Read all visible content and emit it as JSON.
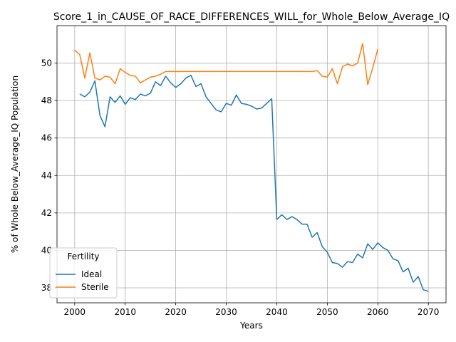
{
  "chart_data": {
    "type": "line",
    "title": "Score_1_in_CAUSE_OF_RACE_DIFFERENCES_WILL_for_Whole_Below_Average_IQ",
    "xlabel": "Years",
    "ylabel": "% of Whole Below_Average_IQ Population",
    "xlim": [
      1996.5,
      2073.5
    ],
    "ylim": [
      37.2,
      52.0
    ],
    "xticks": [
      2000,
      2010,
      2020,
      2030,
      2040,
      2050,
      2060,
      2070
    ],
    "yticks": [
      38,
      40,
      42,
      44,
      46,
      48,
      50
    ],
    "grid": true,
    "legend": {
      "title": "Fertility",
      "placement": "lower-left"
    },
    "series": [
      {
        "name": "Ideal",
        "color": "#1f77b4",
        "x": [
          2001,
          2002,
          2003,
          2004,
          2005,
          2006,
          2007,
          2008,
          2009,
          2010,
          2011,
          2012,
          2013,
          2014,
          2015,
          2016,
          2017,
          2018,
          2019,
          2020,
          2021,
          2022,
          2023,
          2024,
          2025,
          2026,
          2027,
          2028,
          2029,
          2030,
          2031,
          2032,
          2033,
          2034,
          2035,
          2036,
          2037,
          2038,
          2039,
          2040,
          2041,
          2042,
          2043,
          2044,
          2045,
          2046,
          2047,
          2048,
          2049,
          2050,
          2051,
          2052,
          2053,
          2054,
          2055,
          2056,
          2057,
          2058,
          2059,
          2060,
          2061,
          2062,
          2063,
          2064,
          2065,
          2066,
          2067,
          2068,
          2069,
          2070
        ],
        "values": [
          48.35,
          48.2,
          48.45,
          49.05,
          47.2,
          46.6,
          48.2,
          47.9,
          48.25,
          47.8,
          48.15,
          48.05,
          48.35,
          48.25,
          48.4,
          49.0,
          48.8,
          49.3,
          48.95,
          48.7,
          48.9,
          49.2,
          49.35,
          48.75,
          48.9,
          48.2,
          47.85,
          47.5,
          47.4,
          47.85,
          47.75,
          48.3,
          47.85,
          47.8,
          47.7,
          47.55,
          47.6,
          47.85,
          48.1,
          41.65,
          41.9,
          41.65,
          41.8,
          41.65,
          41.4,
          41.4,
          40.7,
          40.95,
          40.2,
          39.9,
          39.35,
          39.3,
          39.1,
          39.4,
          39.35,
          39.8,
          39.6,
          40.35,
          40.05,
          40.4,
          40.15,
          40.0,
          39.55,
          39.45,
          38.85,
          39.05,
          38.3,
          38.6,
          37.9,
          37.8
        ]
      },
      {
        "name": "Sterile",
        "color": "#ff7f0e",
        "x": [
          2000,
          2001,
          2002,
          2003,
          2004,
          2005,
          2006,
          2007,
          2008,
          2009,
          2010,
          2011,
          2012,
          2013,
          2014,
          2015,
          2016,
          2017,
          2018,
          2019,
          2020,
          2021,
          2022,
          2023,
          2024,
          2025,
          2026,
          2027,
          2028,
          2029,
          2030,
          2031,
          2032,
          2033,
          2034,
          2035,
          2036,
          2037,
          2038,
          2039,
          2040,
          2041,
          2042,
          2043,
          2044,
          2045,
          2046,
          2047,
          2048,
          2049,
          2050,
          2051,
          2052,
          2053,
          2054,
          2055,
          2056,
          2057,
          2058,
          2059,
          2060
        ],
        "values": [
          50.7,
          50.45,
          49.2,
          50.55,
          49.2,
          49.1,
          49.3,
          49.25,
          48.9,
          49.7,
          49.5,
          49.35,
          49.3,
          48.95,
          49.1,
          49.25,
          49.3,
          49.4,
          49.55,
          49.55,
          49.55,
          49.55,
          49.55,
          49.55,
          49.55,
          49.55,
          49.55,
          49.55,
          49.55,
          49.55,
          49.55,
          49.55,
          49.55,
          49.55,
          49.55,
          49.55,
          49.55,
          49.55,
          49.55,
          49.55,
          49.55,
          49.55,
          49.55,
          49.55,
          49.55,
          49.55,
          49.55,
          49.55,
          49.6,
          49.3,
          49.25,
          49.7,
          48.9,
          49.8,
          49.95,
          49.85,
          50.0,
          51.05,
          48.85,
          49.75,
          50.75
        ]
      }
    ]
  }
}
